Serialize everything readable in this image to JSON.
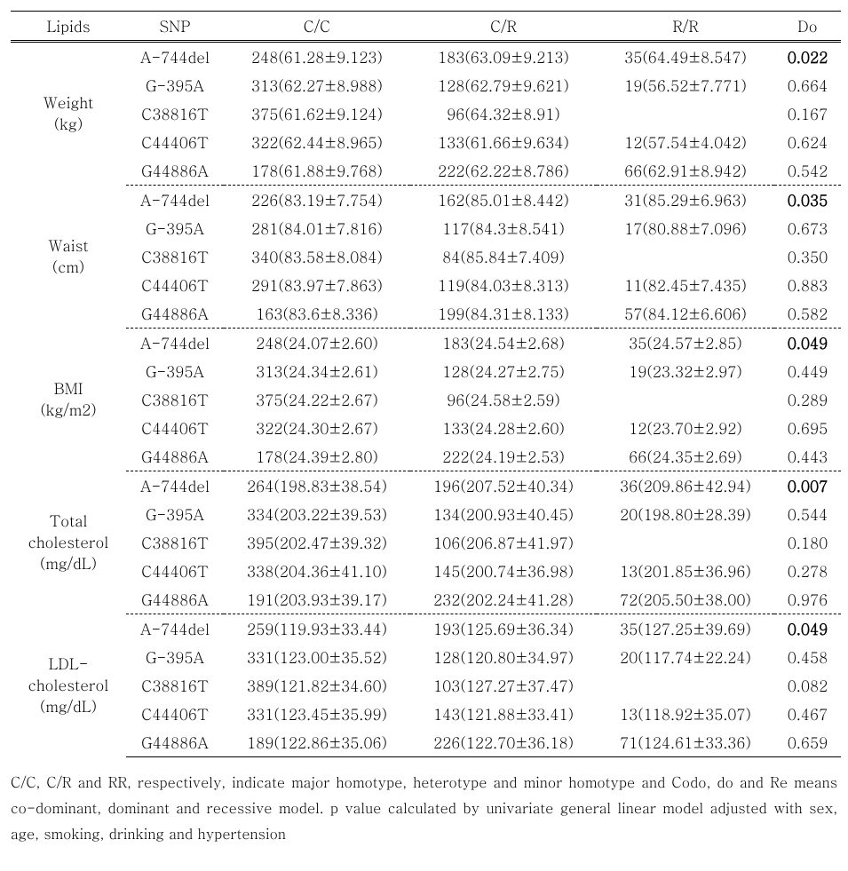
{
  "table": {
    "headers": {
      "lipids": "Lipids",
      "snp": "SNP",
      "cc": "C/C",
      "cr": "C/R",
      "rr": "R/R",
      "do": "Do"
    },
    "groups": [
      {
        "label_line1": "Weight",
        "label_line2": "(kg)",
        "rows": [
          {
            "snp": "A-744del",
            "cc": "248(61.28±9.123)",
            "cr": "183(63.09±9.213)",
            "rr": "35(64.49±8.547)",
            "do": "0.022",
            "do_bold": true
          },
          {
            "snp": "G-395A",
            "cc": "313(62.27±8.988)",
            "cr": "128(62.79±9.621)",
            "rr": "19(56.52±7.771)",
            "do": "0.664",
            "do_bold": false
          },
          {
            "snp": "C38816T",
            "cc": "375(61.62±9.124)",
            "cr": "96(64.32±8.91)",
            "rr": "",
            "do": "0.167",
            "do_bold": false
          },
          {
            "snp": "C44406T",
            "cc": "322(62.44±8.965)",
            "cr": "133(61.66±9.634)",
            "rr": "12(57.54±4.042)",
            "do": "0.624",
            "do_bold": false
          },
          {
            "snp": "G44886A",
            "cc": "178(61.88±9.768)",
            "cr": "222(62.22±8.786)",
            "rr": "66(62.91±8.942)",
            "do": "0.542",
            "do_bold": false
          }
        ]
      },
      {
        "label_line1": "Waist",
        "label_line2": "(cm)",
        "rows": [
          {
            "snp": "A-744del",
            "cc": "226(83.19±7.754)",
            "cr": "162(85.01±8.442)",
            "rr": "31(85.29±6.963)",
            "do": "0.035",
            "do_bold": true
          },
          {
            "snp": "G-395A",
            "cc": "281(84.01±7.816)",
            "cr": "117(84.3±8.541)",
            "rr": "17(80.88±7.096)",
            "do": "0.673",
            "do_bold": false
          },
          {
            "snp": "C38816T",
            "cc": "340(83.58±8.084)",
            "cr": "84(85.84±7.409)",
            "rr": "",
            "do": "0.350",
            "do_bold": false
          },
          {
            "snp": "C44406T",
            "cc": "291(83.97±7.863)",
            "cr": "119(84.03±8.313)",
            "rr": "11(82.45±7.435)",
            "do": "0.883",
            "do_bold": false
          },
          {
            "snp": "G44886A",
            "cc": "163(83.6±8.336)",
            "cr": "199(84.31±8.133)",
            "rr": "57(84.12±6.606)",
            "do": "0.582",
            "do_bold": false
          }
        ]
      },
      {
        "label_line1": "BMI",
        "label_line2": "(kg/m2)",
        "rows": [
          {
            "snp": "A-744del",
            "cc": "248(24.07±2.60)",
            "cr": "183(24.54±2.68)",
            "rr": "35(24.57±2.85)",
            "do": "0.049",
            "do_bold": true
          },
          {
            "snp": "G-395A",
            "cc": "313(24.34±2.61)",
            "cr": "128(24.27±2.75)",
            "rr": "19(23.32±2.97)",
            "do": "0.449",
            "do_bold": false
          },
          {
            "snp": "C38816T",
            "cc": "375(24.22±2.67)",
            "cr": "96(24.58±2.59)",
            "rr": "",
            "do": "0.289",
            "do_bold": false
          },
          {
            "snp": "C44406T",
            "cc": "322(24.30±2.67)",
            "cr": "133(24.28±2.60)",
            "rr": "12(23.70±2.92)",
            "do": "0.695",
            "do_bold": false
          },
          {
            "snp": "G44886A",
            "cc": "178(24.39±2.80)",
            "cr": "222(24.19±2.53)",
            "rr": "66(24.35±2.69)",
            "do": "0.443",
            "do_bold": false
          }
        ]
      },
      {
        "label_line1": "Total",
        "label_line2": "cholesterol",
        "label_line3": "(mg/dL)",
        "rows": [
          {
            "snp": "A-744del",
            "cc": "264(198.83±38.54)",
            "cr": "196(207.52±40.34)",
            "rr": "36(209.86±42.94)",
            "do": "0.007",
            "do_bold": true
          },
          {
            "snp": "G-395A",
            "cc": "334(203.22±39.53)",
            "cr": "134(200.93±40.45)",
            "rr": "20(198.80±28.39)",
            "do": "0.544",
            "do_bold": false
          },
          {
            "snp": "C38816T",
            "cc": "395(202.47±39.32)",
            "cr": "106(206.87±41.97)",
            "rr": "",
            "do": "0.180",
            "do_bold": false
          },
          {
            "snp": "C44406T",
            "cc": "338(204.36±41.10)",
            "cr": "145(200.74±36.98)",
            "rr": "13(201.85±36.96)",
            "do": "0.278",
            "do_bold": false
          },
          {
            "snp": "G44886A",
            "cc": "191(203.93±39.17)",
            "cr": "232(202.24±41.28)",
            "rr": "72(205.50±38.00)",
            "do": "0.976",
            "do_bold": false
          }
        ]
      },
      {
        "label_line1": "LDL-",
        "label_line2": "cholesterol",
        "label_line3": "(mg/dL)",
        "rows": [
          {
            "snp": "A-744del",
            "cc": "259(119.93±33.44)",
            "cr": "193(125.69±36.34)",
            "rr": "35(127.25±39.69)",
            "do": "0.049",
            "do_bold": true
          },
          {
            "snp": "G-395A",
            "cc": "331(123.00±35.52)",
            "cr": "128(120.80±34.97)",
            "rr": "20(117.74±22.24)",
            "do": "0.458",
            "do_bold": false
          },
          {
            "snp": "C38816T",
            "cc": "389(121.82±34.60)",
            "cr": "103(127.27±37.47)",
            "rr": "",
            "do": "0.082",
            "do_bold": false
          },
          {
            "snp": "C44406T",
            "cc": "331(123.45±35.99)",
            "cr": "143(121.88±33.41)",
            "rr": "13(118.92±35.07)",
            "do": "0.467",
            "do_bold": false
          },
          {
            "snp": "G44886A",
            "cc": "189(122.86±35.06)",
            "cr": "226(122.70±36.18)",
            "rr": "71(124.61±33.36)",
            "do": "0.659",
            "do_bold": false
          }
        ]
      }
    ]
  },
  "caption": "C/C, C/R and RR, respectively, indicate major homotype, heterotype and minor homotype and Codo, do and Re means co-dominant, dominant and recessive model. p value calculated by univariate general linear model adjusted with sex, age, smoking, drinking and hypertension"
}
